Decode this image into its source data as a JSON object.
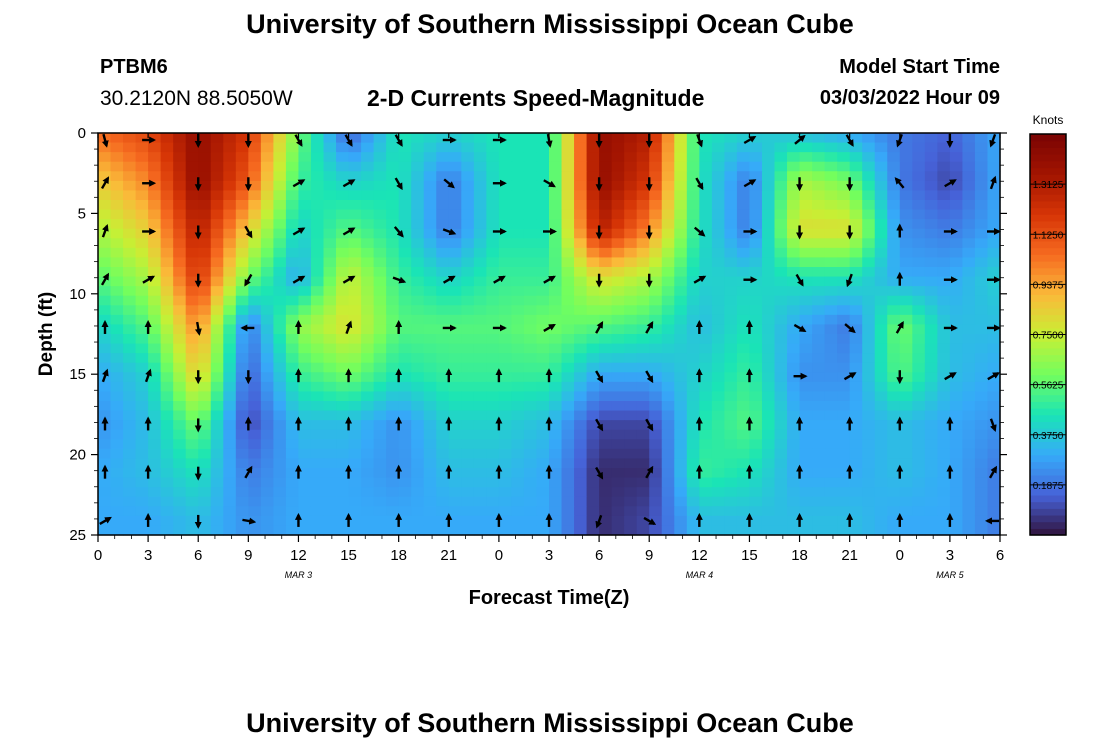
{
  "header": {
    "title": "University of Southern Mississippi Ocean Cube",
    "station_id": "PTBM6",
    "coordinates": "30.2120N  88.5050W",
    "subtitle": "2-D Currents Speed-Magnitude",
    "model_start_label": "Model Start Time",
    "model_start_value": "03/03/2022 Hour 09"
  },
  "footer": {
    "title": "University of Southern Mississippi Ocean Cube"
  },
  "chart_data": {
    "type": "heatmap",
    "title": "2-D Currents Speed-Magnitude",
    "xlabel": "Forecast Time(Z)",
    "ylabel": "Depth (ft)",
    "xlim": [
      0,
      54
    ],
    "ylim": [
      0,
      25
    ],
    "x_ticks": [
      0,
      3,
      6,
      9,
      12,
      15,
      18,
      21,
      24,
      27,
      30,
      33,
      36,
      39,
      42,
      45,
      48,
      51,
      54
    ],
    "x_tick_labels": [
      "0",
      "3",
      "6",
      "9",
      "12",
      "15",
      "18",
      "21",
      "0",
      "3",
      "6",
      "9",
      "12",
      "15",
      "18",
      "21",
      "0",
      "3",
      "6"
    ],
    "y_ticks": [
      0,
      5,
      10,
      15,
      20,
      25
    ],
    "y_tick_labels": [
      "0",
      "5",
      "10",
      "15",
      "20",
      "25"
    ],
    "date_labels": [
      {
        "x": 12,
        "text": "MAR 3"
      },
      {
        "x": 36,
        "text": "MAR 4"
      },
      {
        "x": 51,
        "text": "MAR 5"
      }
    ],
    "colorbar": {
      "label": "Knots",
      "min": 0,
      "max": 1.5,
      "tick_values": [
        0.1875,
        0.375,
        0.5625,
        0.75,
        0.9375,
        1.125,
        1.3125
      ],
      "tick_labels": [
        "0.1875",
        "0.3750",
        "0.5625",
        "0.7500",
        "0.9375",
        "1.1250",
        "1.3125"
      ]
    },
    "speed_times": [
      0,
      3,
      6,
      9,
      12,
      15,
      18,
      21,
      24,
      27,
      30,
      33,
      36,
      39,
      42,
      45,
      48,
      51,
      54
    ],
    "speed_depths": [
      0,
      3,
      6,
      9,
      12,
      15,
      18,
      21,
      24
    ],
    "speed_knots": [
      [
        1.05,
        1.15,
        1.4,
        1.2,
        0.6,
        0.15,
        0.45,
        0.4,
        0.45,
        0.45,
        1.4,
        1.3,
        0.45,
        0.4,
        0.35,
        0.3,
        0.2,
        0.15,
        0.3
      ],
      [
        0.85,
        1.0,
        1.4,
        1.1,
        0.5,
        0.4,
        0.45,
        0.2,
        0.45,
        0.45,
        1.4,
        1.2,
        0.45,
        0.2,
        0.7,
        0.6,
        0.2,
        0.1,
        0.3
      ],
      [
        0.7,
        0.85,
        1.3,
        0.85,
        0.4,
        0.55,
        0.45,
        0.2,
        0.45,
        0.45,
        1.3,
        1.0,
        0.45,
        0.2,
        0.8,
        0.8,
        0.25,
        0.2,
        0.3
      ],
      [
        0.55,
        0.7,
        1.2,
        0.6,
        0.3,
        0.75,
        0.5,
        0.4,
        0.5,
        0.5,
        0.8,
        0.7,
        0.4,
        0.4,
        0.45,
        0.45,
        0.3,
        0.3,
        0.4
      ],
      [
        0.4,
        0.55,
        1.0,
        0.2,
        0.65,
        0.8,
        0.55,
        0.55,
        0.55,
        0.6,
        0.55,
        0.5,
        0.35,
        0.45,
        0.3,
        0.2,
        0.6,
        0.35,
        0.35
      ],
      [
        0.3,
        0.4,
        0.85,
        0.15,
        0.5,
        0.6,
        0.45,
        0.5,
        0.5,
        0.5,
        0.3,
        0.3,
        0.4,
        0.5,
        0.25,
        0.25,
        0.55,
        0.35,
        0.3
      ],
      [
        0.25,
        0.35,
        0.6,
        0.1,
        0.35,
        0.35,
        0.25,
        0.4,
        0.4,
        0.35,
        0.1,
        0.1,
        0.45,
        0.55,
        0.3,
        0.3,
        0.35,
        0.3,
        0.25
      ],
      [
        0.3,
        0.35,
        0.45,
        0.2,
        0.3,
        0.3,
        0.25,
        0.35,
        0.35,
        0.3,
        0.05,
        0.05,
        0.5,
        0.45,
        0.3,
        0.3,
        0.35,
        0.3,
        0.2
      ],
      [
        0.3,
        0.3,
        0.35,
        0.25,
        0.3,
        0.3,
        0.3,
        0.3,
        0.3,
        0.3,
        0.05,
        0.1,
        0.35,
        0.35,
        0.35,
        0.35,
        0.3,
        0.3,
        0.2
      ]
    ],
    "vectors": {
      "times": [
        0,
        3,
        6,
        9,
        12,
        15,
        18,
        21,
        24,
        27,
        30,
        33,
        36,
        39,
        42,
        45,
        48,
        51,
        54
      ],
      "depths": [
        0,
        3,
        6,
        9,
        12,
        15,
        18,
        21,
        24
      ],
      "directions_deg": [
        [
          165,
          90,
          180,
          180,
          150,
          150,
          150,
          90,
          90,
          170,
          180,
          180,
          160,
          60,
          50,
          150,
          200,
          180,
          200
        ],
        [
          30,
          90,
          180,
          180,
          60,
          60,
          150,
          130,
          90,
          120,
          180,
          180,
          150,
          60,
          180,
          180,
          320,
          60,
          20
        ],
        [
          20,
          90,
          180,
          150,
          60,
          60,
          140,
          110,
          90,
          90,
          180,
          180,
          130,
          90,
          180,
          180,
          0,
          90,
          90
        ],
        [
          30,
          60,
          180,
          210,
          60,
          60,
          110,
          60,
          60,
          60,
          180,
          180,
          60,
          90,
          150,
          200,
          0,
          90,
          90
        ],
        [
          0,
          0,
          170,
          270,
          0,
          20,
          0,
          90,
          90,
          60,
          30,
          30,
          0,
          0,
          120,
          130,
          30,
          90,
          90
        ],
        [
          20,
          20,
          180,
          180,
          0,
          0,
          0,
          0,
          0,
          0,
          150,
          150,
          0,
          0,
          90,
          60,
          180,
          60,
          60
        ],
        [
          0,
          0,
          180,
          0,
          0,
          0,
          0,
          0,
          0,
          0,
          150,
          150,
          0,
          0,
          0,
          0,
          0,
          0,
          160
        ],
        [
          0,
          0,
          180,
          30,
          0,
          0,
          0,
          0,
          0,
          0,
          150,
          30,
          0,
          0,
          0,
          0,
          0,
          0,
          30
        ],
        [
          60,
          0,
          180,
          100,
          0,
          0,
          0,
          0,
          0,
          0,
          200,
          120,
          0,
          0,
          0,
          0,
          0,
          0,
          270
        ]
      ]
    }
  }
}
